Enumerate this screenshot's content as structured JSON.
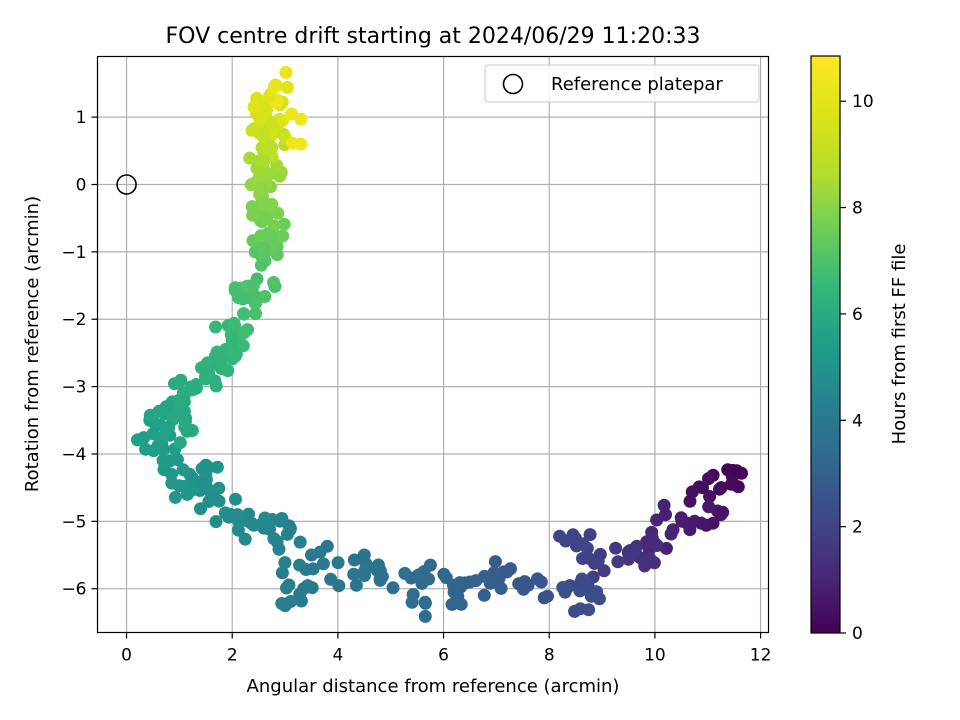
{
  "chart_data": {
    "type": "scatter",
    "title": "FOV centre drift starting at 2024/06/29 11:20:33",
    "xlabel": "Angular distance from reference (arcmin)",
    "ylabel": "Rotation from reference (arcmin)",
    "xlim": [
      -0.55,
      12.15
    ],
    "ylim": [
      -6.65,
      1.9
    ],
    "xticks": [
      0,
      2,
      4,
      6,
      8,
      10,
      12
    ],
    "yticks": [
      1,
      0,
      -1,
      -2,
      -3,
      -4,
      -5,
      -6
    ],
    "grid": true,
    "legend": {
      "placement": "top-right",
      "entries": [
        "Reference platepar"
      ]
    },
    "reference": {
      "x": 0,
      "y": 0
    },
    "colorbar": {
      "label": "Hours from first FF file",
      "range": [
        0,
        10.85
      ],
      "ticks": [
        0,
        2,
        4,
        6,
        8,
        10
      ],
      "colormap": "viridis"
    },
    "path": [
      [
        11.55,
        -4.25,
        0.05
      ],
      [
        11.45,
        -4.45,
        0.2
      ],
      [
        10.9,
        -4.5,
        0.4
      ],
      [
        11.25,
        -4.9,
        0.5
      ],
      [
        10.75,
        -5.0,
        0.7
      ],
      [
        10.2,
        -4.9,
        0.9
      ],
      [
        9.95,
        -5.25,
        1.1
      ],
      [
        9.9,
        -5.55,
        1.3
      ],
      [
        9.5,
        -5.45,
        1.5
      ],
      [
        9.3,
        -5.6,
        1.7
      ],
      [
        8.75,
        -5.55,
        1.9
      ],
      [
        8.45,
        -5.2,
        2.0
      ],
      [
        8.6,
        -5.9,
        2.15
      ],
      [
        8.95,
        -6.15,
        2.3
      ],
      [
        8.3,
        -6.05,
        2.45
      ],
      [
        7.6,
        -5.95,
        2.6
      ],
      [
        7.2,
        -5.75,
        2.75
      ],
      [
        6.9,
        -5.85,
        2.9
      ],
      [
        6.5,
        -5.9,
        3.05
      ],
      [
        6.2,
        -6.05,
        3.2
      ],
      [
        5.75,
        -5.65,
        3.35
      ],
      [
        5.65,
        -6.2,
        3.5
      ],
      [
        4.8,
        -5.85,
        3.65
      ],
      [
        4.5,
        -5.5,
        3.75
      ],
      [
        4.35,
        -5.95,
        3.85
      ],
      [
        3.5,
        -5.5,
        3.95
      ],
      [
        3.35,
        -6.0,
        4.05
      ],
      [
        3.0,
        -6.25,
        4.15
      ],
      [
        3.1,
        -5.1,
        4.25
      ],
      [
        2.85,
        -5.3,
        4.35
      ],
      [
        2.6,
        -5.1,
        4.5
      ],
      [
        2.3,
        -5.0,
        4.6
      ],
      [
        2.1,
        -4.9,
        4.7
      ],
      [
        1.75,
        -4.7,
        4.8
      ],
      [
        1.45,
        -4.45,
        4.9
      ],
      [
        1.55,
        -4.2,
        5.0
      ],
      [
        1.15,
        -4.6,
        5.1
      ],
      [
        0.85,
        -4.3,
        5.2
      ],
      [
        0.7,
        -4.1,
        5.3
      ],
      [
        0.5,
        -3.7,
        5.45
      ],
      [
        0.8,
        -3.6,
        5.6
      ],
      [
        0.75,
        -3.3,
        5.75
      ],
      [
        1.1,
        -3.6,
        5.85
      ],
      [
        1.0,
        -3.2,
        5.95
      ],
      [
        1.3,
        -3.0,
        6.05
      ],
      [
        1.55,
        -2.8,
        6.2
      ],
      [
        1.8,
        -2.6,
        6.35
      ],
      [
        2.0,
        -2.3,
        6.5
      ],
      [
        2.05,
        -2.1,
        6.65
      ],
      [
        2.2,
        -1.7,
        6.8
      ],
      [
        2.4,
        -1.5,
        6.95
      ],
      [
        2.55,
        -1.2,
        7.1
      ],
      [
        2.6,
        -0.95,
        7.3
      ],
      [
        2.7,
        -0.75,
        7.5
      ],
      [
        2.65,
        -0.5,
        7.7
      ],
      [
        2.6,
        -0.3,
        7.9
      ],
      [
        2.55,
        -0.05,
        8.1
      ],
      [
        2.7,
        0.15,
        8.3
      ],
      [
        2.6,
        0.35,
        8.55
      ],
      [
        2.75,
        0.55,
        8.8
      ],
      [
        2.6,
        0.75,
        9.05
      ],
      [
        2.75,
        0.9,
        9.3
      ],
      [
        2.65,
        1.1,
        9.55
      ],
      [
        2.7,
        1.3,
        9.85
      ],
      [
        2.8,
        1.45,
        10.15
      ],
      [
        3.3,
        0.6,
        10.4
      ]
    ]
  }
}
